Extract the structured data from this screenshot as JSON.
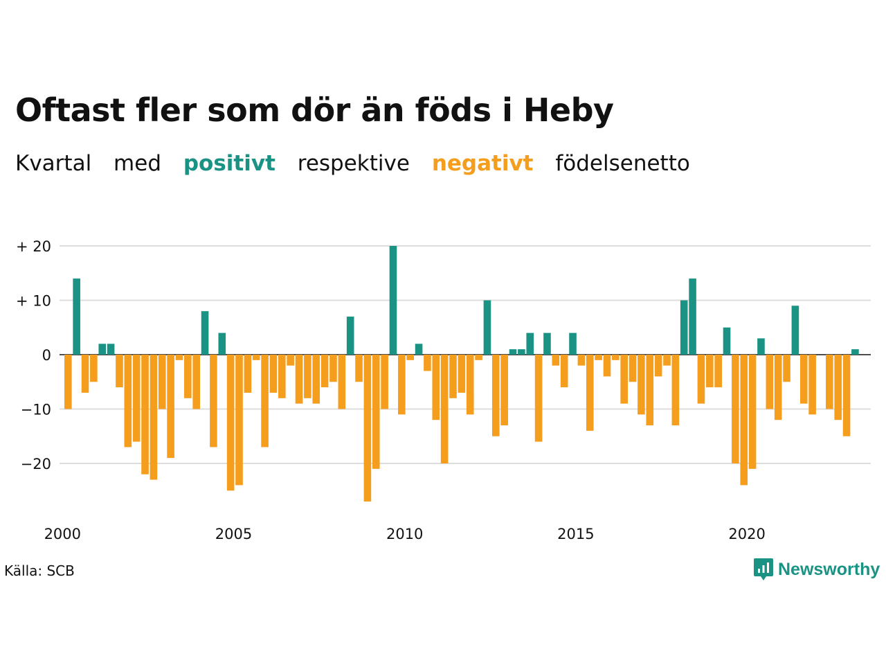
{
  "title": "Oftast fler som dör än föds i Heby",
  "subtitle": {
    "part1": "Kvartal",
    "part2": "med",
    "positive": "positivt",
    "part3": "respektive",
    "negative": "negativt",
    "part4": "födelsenetto"
  },
  "source": "Källa: SCB",
  "brand": {
    "name": "Newsworthy",
    "icon": "newsworthy-logo-icon"
  },
  "colors": {
    "positive": "#1a9384",
    "negative": "#f59d1c",
    "grid": "#dddddd",
    "zero": "#111111"
  },
  "chart_data": {
    "type": "bar",
    "x_start": "2000 Q1",
    "frequency": "quarterly",
    "values": [
      -10,
      14,
      -7,
      -5,
      2,
      2,
      -6,
      -17,
      -16,
      -22,
      -23,
      -10,
      -19,
      -1,
      -8,
      -10,
      8,
      -17,
      4,
      -25,
      -24,
      -7,
      -1,
      -17,
      -7,
      -8,
      -2,
      -9,
      -8,
      -9,
      -6,
      -5,
      -10,
      7,
      -5,
      -27,
      -21,
      -10,
      20,
      -11,
      -1,
      2,
      -3,
      -12,
      -20,
      -8,
      -7,
      -11,
      -1,
      10,
      -15,
      -13,
      1,
      1,
      4,
      -16,
      4,
      -2,
      -6,
      4,
      -2,
      -14,
      -1,
      -4,
      -1,
      -9,
      -5,
      -11,
      -13,
      -4,
      -2,
      -13,
      10,
      14,
      -9,
      -6,
      -6,
      5,
      -20,
      -24,
      -21,
      3,
      -10,
      -12,
      -5,
      9,
      -9,
      -11,
      0,
      -10,
      -12,
      -15,
      1
    ],
    "x_ticks": [
      "2000",
      "2005",
      "2010",
      "2015",
      "2020"
    ],
    "y_ticks": [
      {
        "value": 20,
        "label": "+ 20"
      },
      {
        "value": 10,
        "label": "+ 10"
      },
      {
        "value": 0,
        "label": "0"
      },
      {
        "value": -10,
        "label": "−10"
      },
      {
        "value": -20,
        "label": "−20"
      }
    ],
    "ylim": [
      -29,
      22
    ],
    "grid": true,
    "legend": "none"
  }
}
